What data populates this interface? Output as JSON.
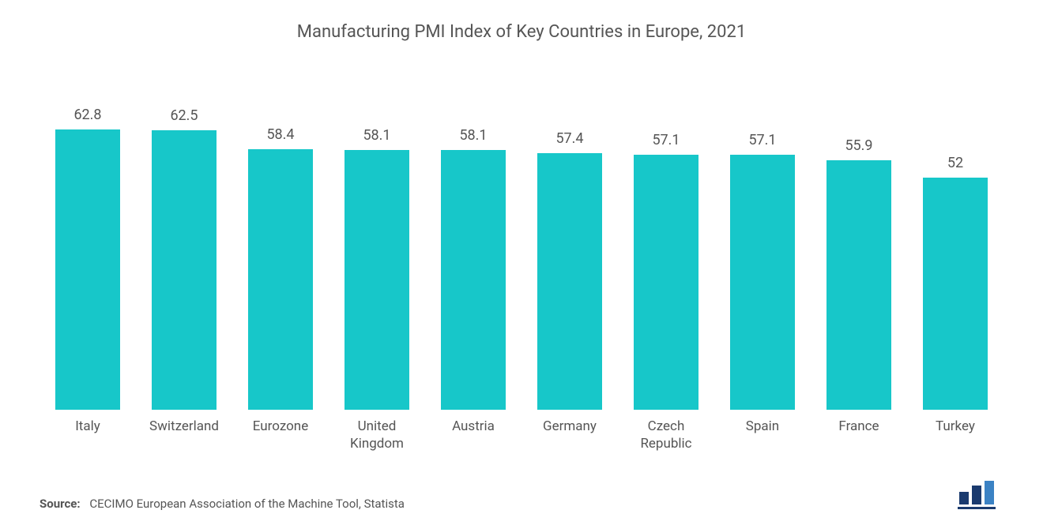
{
  "chart": {
    "type": "bar",
    "title": "Manufacturing PMI Index of Key Countries in Europe, 2021",
    "title_fontsize": 22,
    "title_color": "#555555",
    "background_color": "#ffffff",
    "bar_color": "#17c7c9",
    "value_label_color": "#555555",
    "value_label_fontsize": 18,
    "category_label_color": "#555555",
    "category_label_fontsize": 17,
    "bar_width_pct": 68,
    "y_max": 70,
    "categories": [
      "Italy",
      "Switzerland",
      "Eurozone",
      "United Kingdom",
      "Austria",
      "Germany",
      "Czech Republic",
      "Spain",
      "France",
      "Turkey"
    ],
    "values": [
      62.8,
      62.5,
      58.4,
      58.1,
      58.1,
      57.4,
      57.1,
      57.1,
      55.9,
      52
    ]
  },
  "footer": {
    "source_label": "Source:",
    "source_text": "CECIMO European Association of the Machine Tool, Statista",
    "source_fontsize": 15,
    "source_color": "#555555"
  },
  "logo": {
    "bar_colors": [
      "#1a3a6e",
      "#1a3a6e",
      "#3b82c4"
    ],
    "underline_color": "#1a3a6e"
  }
}
